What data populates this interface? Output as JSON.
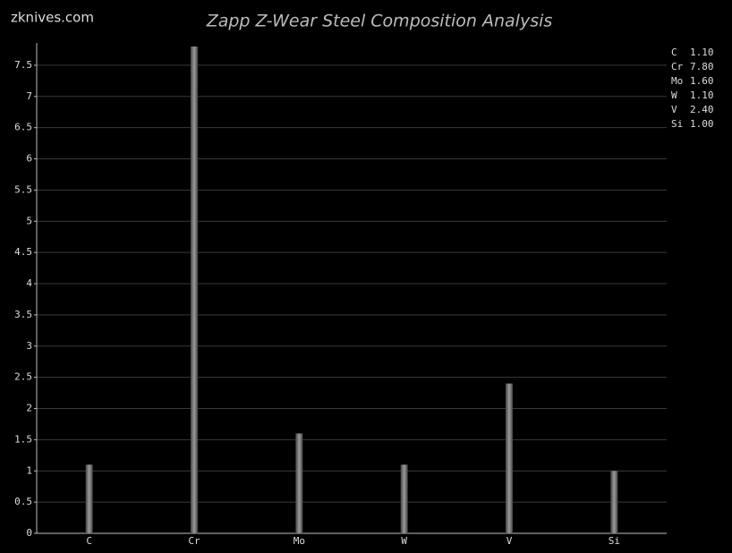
{
  "chart_data": {
    "type": "bar",
    "title": "Zapp Z-Wear Steel Composition Analysis",
    "source": "zknives.com",
    "categories": [
      "C",
      "Cr",
      "Mo",
      "W",
      "V",
      "Si"
    ],
    "values": [
      1.1,
      7.8,
      1.6,
      1.1,
      2.4,
      1.0
    ],
    "value_labels": [
      "1.10",
      "7.80",
      "1.60",
      "1.10",
      "2.40",
      "1.00"
    ],
    "color": "#9a9a9a",
    "ylim": [
      0,
      7.8
    ],
    "yticks": [
      0,
      0.5,
      1,
      1.5,
      2,
      2.5,
      3,
      3.5,
      4,
      4.5,
      5,
      5.5,
      6,
      6.5,
      7,
      7.5
    ],
    "grid": true,
    "legend": "top-right"
  }
}
